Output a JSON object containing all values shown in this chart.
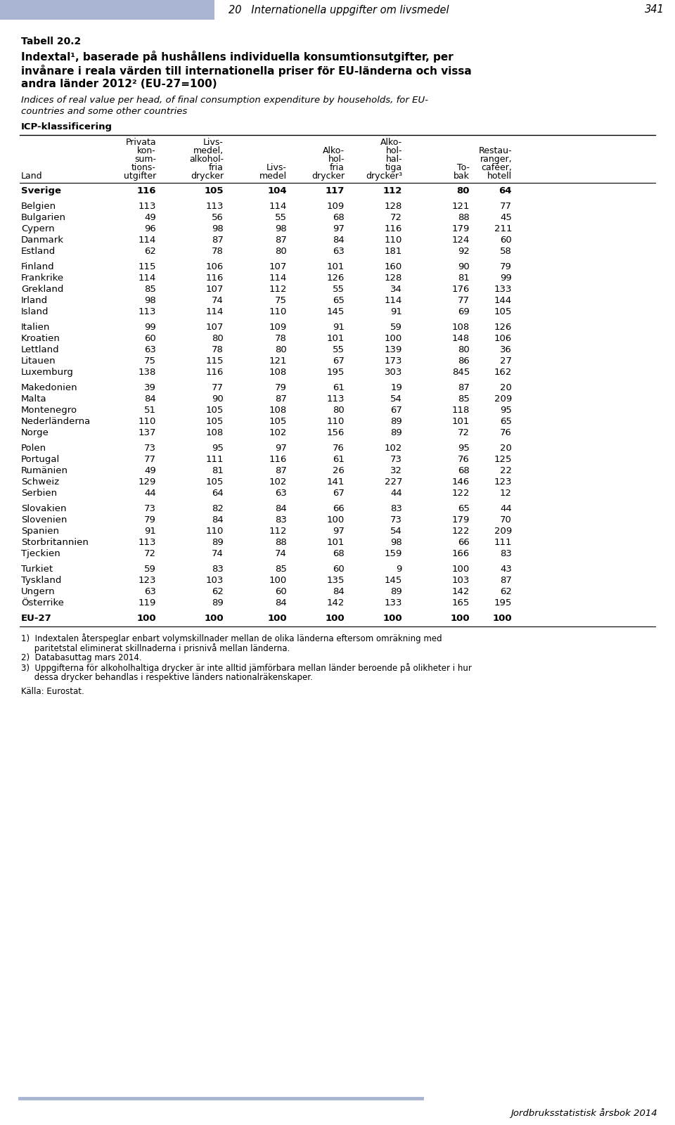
{
  "header_bar_color": "#a8b4d0",
  "background_color": "#ffffff",
  "page_header": "20   Internationella uppgifter om livsmedel",
  "page_number": "341",
  "title_bold_lines": [
    "Tabell 20.2",
    "Indextal¹, baserade på hushållens individuella konsumtionsutgifter, per",
    "invånare i reala värden till internationella priser för EU-länderna och vissa",
    "andra länder 2012² (EU-27=100)"
  ],
  "title_italic_lines": [
    "Indices of real value per head, of final consumption expenditure by households, for EU-",
    "countries and some other countries"
  ],
  "icp_label": "ICP-klassificering",
  "col_headers": [
    [
      "Land"
    ],
    [
      "Privata",
      "kon-",
      "sum-",
      "tions-",
      "utgifter"
    ],
    [
      "Livs-",
      "medel,",
      "alkohol-",
      "fria",
      "drycker"
    ],
    [
      "Livs-",
      "medel"
    ],
    [
      "Alko-",
      "hol-",
      "fria",
      "drycker"
    ],
    [
      "Alko-",
      "hol-",
      "hal-",
      "tiga",
      "drycker³"
    ],
    [
      "To-",
      "bak"
    ],
    [
      "Restau-",
      "ranger,",
      "caféer,",
      "hotell"
    ]
  ],
  "rows": [
    [
      "Sverige",
      116,
      105,
      104,
      117,
      112,
      80,
      64
    ],
    [
      "",
      "",
      "",
      "",
      "",
      "",
      "",
      ""
    ],
    [
      "Belgien",
      113,
      113,
      114,
      109,
      128,
      121,
      77
    ],
    [
      "Bulgarien",
      49,
      56,
      55,
      68,
      72,
      88,
      45
    ],
    [
      "Cypern",
      96,
      98,
      98,
      97,
      116,
      179,
      211
    ],
    [
      "Danmark",
      114,
      87,
      87,
      84,
      110,
      124,
      60
    ],
    [
      "Estland",
      62,
      78,
      80,
      63,
      181,
      92,
      58
    ],
    [
      "",
      "",
      "",
      "",
      "",
      "",
      "",
      ""
    ],
    [
      "Finland",
      115,
      106,
      107,
      101,
      160,
      90,
      79
    ],
    [
      "Frankrike",
      114,
      116,
      114,
      126,
      128,
      81,
      99
    ],
    [
      "Grekland",
      85,
      107,
      112,
      55,
      34,
      176,
      133
    ],
    [
      "Irland",
      98,
      74,
      75,
      65,
      114,
      77,
      144
    ],
    [
      "Island",
      113,
      114,
      110,
      145,
      91,
      69,
      105
    ],
    [
      "",
      "",
      "",
      "",
      "",
      "",
      "",
      ""
    ],
    [
      "Italien",
      99,
      107,
      109,
      91,
      59,
      108,
      126
    ],
    [
      "Kroatien",
      60,
      80,
      78,
      101,
      100,
      148,
      106
    ],
    [
      "Lettland",
      63,
      78,
      80,
      55,
      139,
      80,
      36
    ],
    [
      "Litauen",
      75,
      115,
      121,
      67,
      173,
      86,
      27
    ],
    [
      "Luxemburg",
      138,
      116,
      108,
      195,
      303,
      845,
      162
    ],
    [
      "",
      "",
      "",
      "",
      "",
      "",
      "",
      ""
    ],
    [
      "Makedonien",
      39,
      77,
      79,
      61,
      19,
      87,
      20
    ],
    [
      "Malta",
      84,
      90,
      87,
      113,
      54,
      85,
      209
    ],
    [
      "Montenegro",
      51,
      105,
      108,
      80,
      67,
      118,
      95
    ],
    [
      "Nederländerna",
      110,
      105,
      105,
      110,
      89,
      101,
      65
    ],
    [
      "Norge",
      137,
      108,
      102,
      156,
      89,
      72,
      76
    ],
    [
      "",
      "",
      "",
      "",
      "",
      "",
      "",
      ""
    ],
    [
      "Polen",
      73,
      95,
      97,
      76,
      102,
      95,
      20
    ],
    [
      "Portugal",
      77,
      111,
      116,
      61,
      73,
      76,
      125
    ],
    [
      "Rumänien",
      49,
      81,
      87,
      26,
      32,
      68,
      22
    ],
    [
      "Schweiz",
      129,
      105,
      102,
      141,
      227,
      146,
      123
    ],
    [
      "Serbien",
      44,
      64,
      63,
      67,
      44,
      122,
      12
    ],
    [
      "",
      "",
      "",
      "",
      "",
      "",
      "",
      ""
    ],
    [
      "Slovakien",
      73,
      82,
      84,
      66,
      83,
      65,
      44
    ],
    [
      "Slovenien",
      79,
      84,
      83,
      100,
      73,
      179,
      70
    ],
    [
      "Spanien",
      91,
      110,
      112,
      97,
      54,
      122,
      209
    ],
    [
      "Storbritannien",
      113,
      89,
      88,
      101,
      98,
      66,
      111
    ],
    [
      "Tjeckien",
      72,
      74,
      74,
      68,
      159,
      166,
      83
    ],
    [
      "",
      "",
      "",
      "",
      "",
      "",
      "",
      ""
    ],
    [
      "Turkiet",
      59,
      83,
      85,
      60,
      9,
      100,
      43
    ],
    [
      "Tyskland",
      123,
      103,
      100,
      135,
      145,
      103,
      87
    ],
    [
      "Ungern",
      63,
      62,
      60,
      84,
      89,
      142,
      62
    ],
    [
      "Österrike",
      119,
      89,
      84,
      142,
      133,
      165,
      195
    ],
    [
      "",
      "",
      "",
      "",
      "",
      "",
      "",
      ""
    ],
    [
      "EU-27",
      100,
      100,
      100,
      100,
      100,
      100,
      100
    ]
  ],
  "footnotes": [
    "1)  Indextalen återspeglar enbart volymskillnader mellan de olika länderna eftersom omräkning med",
    "     paritetstal eliminerat skillnaderna i prisnivå mellan länderna.",
    "2)  Databasuttag mars 2014.",
    "3)  Uppgifterna för alkoholhaltiga drycker är inte alltid jämförbara mellan länder beroende på olikheter i hur",
    "     dessa drycker behandlas i respektive länders nationalräkenskaper."
  ],
  "source": "Källa: Eurostat.",
  "footer_text": "Jordbruksstatistisk årsbok 2014",
  "col_positions": [
    30,
    222,
    318,
    408,
    490,
    572,
    668,
    728,
    820
  ],
  "col_aligns": [
    "left",
    "right",
    "right",
    "right",
    "right",
    "right",
    "right",
    "right"
  ]
}
